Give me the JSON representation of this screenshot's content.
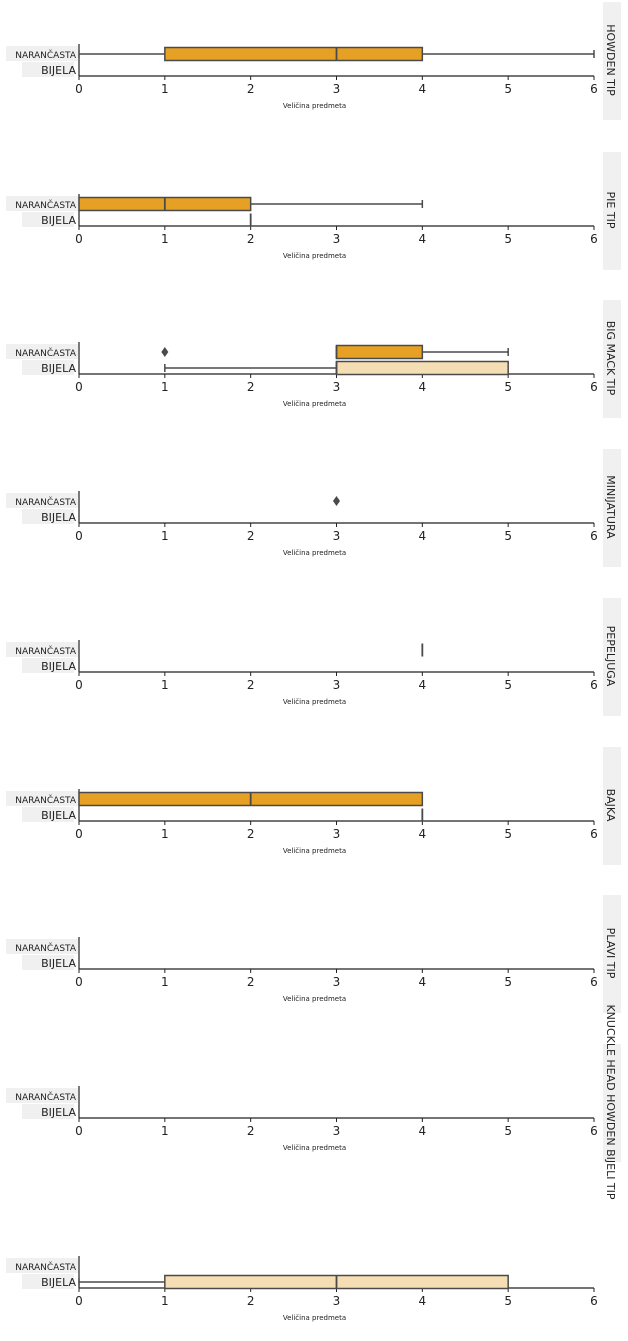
{
  "chart_data": [
    {
      "type": "box",
      "panel_label": "HOWDEN TIP",
      "xlabel": "Veličina predmeta",
      "categories": [
        "NARANČASTA",
        "BIJELA"
      ],
      "xlim": [
        0,
        6
      ],
      "x_ticks": [
        0,
        1,
        2,
        3,
        4,
        5,
        6
      ],
      "boxes": [
        {
          "category": "NARANČASTA",
          "whisker_low": 0,
          "q1": 1,
          "median": 3,
          "q3": 4,
          "whisker_high": 6,
          "outliers": []
        },
        {
          "category": "BIJELA"
        }
      ]
    },
    {
      "type": "box",
      "panel_label": "PIE TIP",
      "xlabel": "Veličina predmeta",
      "categories": [
        "NARANČASTA",
        "BIJELA"
      ],
      "xlim": [
        0,
        6
      ],
      "x_ticks": [
        0,
        1,
        2,
        3,
        4,
        5,
        6
      ],
      "boxes": [
        {
          "category": "NARANČASTA",
          "whisker_low": 0,
          "q1": 0,
          "median": 1,
          "q3": 2,
          "whisker_high": 4,
          "outliers": []
        },
        {
          "category": "BIJELA",
          "whisker_low": 2,
          "q1": 2,
          "median": 2,
          "q3": 2,
          "whisker_high": 2,
          "outliers": []
        }
      ]
    },
    {
      "type": "box",
      "panel_label": "BIG MACK TIP",
      "xlabel": "Veličina predmeta",
      "categories": [
        "NARANČASTA",
        "BIJELA"
      ],
      "xlim": [
        0,
        6
      ],
      "x_ticks": [
        0,
        1,
        2,
        3,
        4,
        5,
        6
      ],
      "boxes": [
        {
          "category": "NARANČASTA",
          "whisker_low": 3,
          "q1": 3,
          "median": 3,
          "q3": 4,
          "whisker_high": 5,
          "outliers": [
            1
          ]
        },
        {
          "category": "BIJELA",
          "whisker_low": 1,
          "q1": 3,
          "median": 3,
          "q3": 5,
          "whisker_high": 5,
          "outliers": []
        }
      ]
    },
    {
      "type": "box",
      "panel_label": "MINIJATURA",
      "xlabel": "Veličina predmeta",
      "categories": [
        "NARANČASTA",
        "BIJELA"
      ],
      "xlim": [
        0,
        6
      ],
      "x_ticks": [
        0,
        1,
        2,
        3,
        4,
        5,
        6
      ],
      "boxes": [
        {
          "category": "NARANČASTA",
          "outliers": [
            3
          ]
        },
        {
          "category": "BIJELA"
        }
      ]
    },
    {
      "type": "box",
      "panel_label": "PEPELJUGA",
      "xlabel": "Veličina predmeta",
      "categories": [
        "NARANČASTA",
        "BIJELA"
      ],
      "xlim": [
        0,
        6
      ],
      "x_ticks": [
        0,
        1,
        2,
        3,
        4,
        5,
        6
      ],
      "boxes": [
        {
          "category": "NARANČASTA",
          "whisker_low": 4,
          "q1": 4,
          "median": 4,
          "q3": 4,
          "whisker_high": 4,
          "outliers": []
        },
        {
          "category": "BIJELA"
        }
      ]
    },
    {
      "type": "box",
      "panel_label": "BAJKA",
      "xlabel": "Veličina predmeta",
      "categories": [
        "NARANČASTA",
        "BIJELA"
      ],
      "xlim": [
        0,
        6
      ],
      "x_ticks": [
        0,
        1,
        2,
        3,
        4,
        5,
        6
      ],
      "boxes": [
        {
          "category": "NARANČASTA",
          "whisker_low": 0,
          "q1": 0,
          "median": 2,
          "q3": 4,
          "whisker_high": 4,
          "outliers": []
        },
        {
          "category": "BIJELA",
          "whisker_low": 4,
          "q1": 4,
          "median": 4,
          "q3": 4,
          "whisker_high": 4,
          "outliers": []
        }
      ]
    },
    {
      "type": "box",
      "panel_label": "PLAVI TIP",
      "xlabel": "Veličina predmeta",
      "categories": [
        "NARANČASTA",
        "BIJELA"
      ],
      "xlim": [
        0,
        6
      ],
      "x_ticks": [
        0,
        1,
        2,
        3,
        4,
        5,
        6
      ],
      "boxes": [
        {
          "category": "NARANČASTA"
        },
        {
          "category": "BIJELA"
        }
      ]
    },
    {
      "type": "box",
      "panel_label": "KNUCKLE HEAD HOWDEN BIJELI TIP",
      "xlabel": "Veličina predmeta",
      "categories": [
        "NARANČASTA",
        "BIJELA"
      ],
      "xlim": [
        0,
        6
      ],
      "x_ticks": [
        0,
        1,
        2,
        3,
        4,
        5,
        6
      ],
      "boxes": [
        {
          "category": "NARANČASTA"
        },
        {
          "category": "BIJELA"
        }
      ]
    },
    {
      "type": "box",
      "panel_label": "",
      "xlabel": "Veličina predmeta",
      "categories": [
        "NARANČASTA",
        "BIJELA"
      ],
      "xlim": [
        0,
        6
      ],
      "x_ticks": [
        0,
        1,
        2,
        3,
        4,
        5,
        6
      ],
      "boxes": [
        {
          "category": "NARANČASTA"
        },
        {
          "category": "BIJELA",
          "whisker_low": 0,
          "q1": 1,
          "median": 3,
          "q3": 5,
          "whisker_high": 5,
          "outliers": []
        }
      ]
    }
  ],
  "colors": {
    "orange_box": "#E6A024",
    "white_box": "#F5DEB3",
    "line": "#4a4a4a",
    "label_bg": "#f0f0f0"
  }
}
